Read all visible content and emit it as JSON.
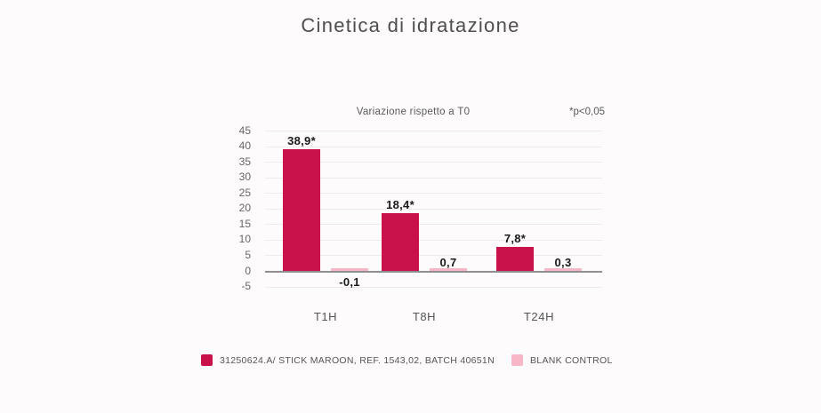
{
  "page": {
    "background": "#FDFBFC"
  },
  "chart_data": {
    "type": "bar",
    "title": "Cinetica di idratazione",
    "subtitle": "Variazione rispetto a T0",
    "annotation": "*p<0,05",
    "categories": [
      "T1H",
      "T8H",
      "T24H"
    ],
    "series": [
      {
        "name": "31250624.A/ STICK MAROON, REF. 1543,02, BATCH 40651N",
        "color": "#C9114B",
        "values": [
          38.9,
          18.4,
          7.8
        ],
        "labels": [
          "38,9*",
          "18,4*",
          "7,8*"
        ]
      },
      {
        "name": "BLANK CONTROL",
        "color": "#F7B7C6",
        "values": [
          -0.1,
          0.7,
          0.3
        ],
        "labels": [
          "-0,1",
          "0,7",
          "0,3"
        ]
      }
    ],
    "ylim": [
      -5,
      45
    ],
    "yticks": [
      45,
      40,
      35,
      30,
      25,
      20,
      15,
      10,
      5,
      0,
      -5
    ],
    "grid": true,
    "legend_position": "bottom",
    "colors": {
      "grid": "#eeebed",
      "zero_axis": "#8f8f8f",
      "value_label": "#1a1a1a",
      "axis_text": "#666666"
    }
  }
}
